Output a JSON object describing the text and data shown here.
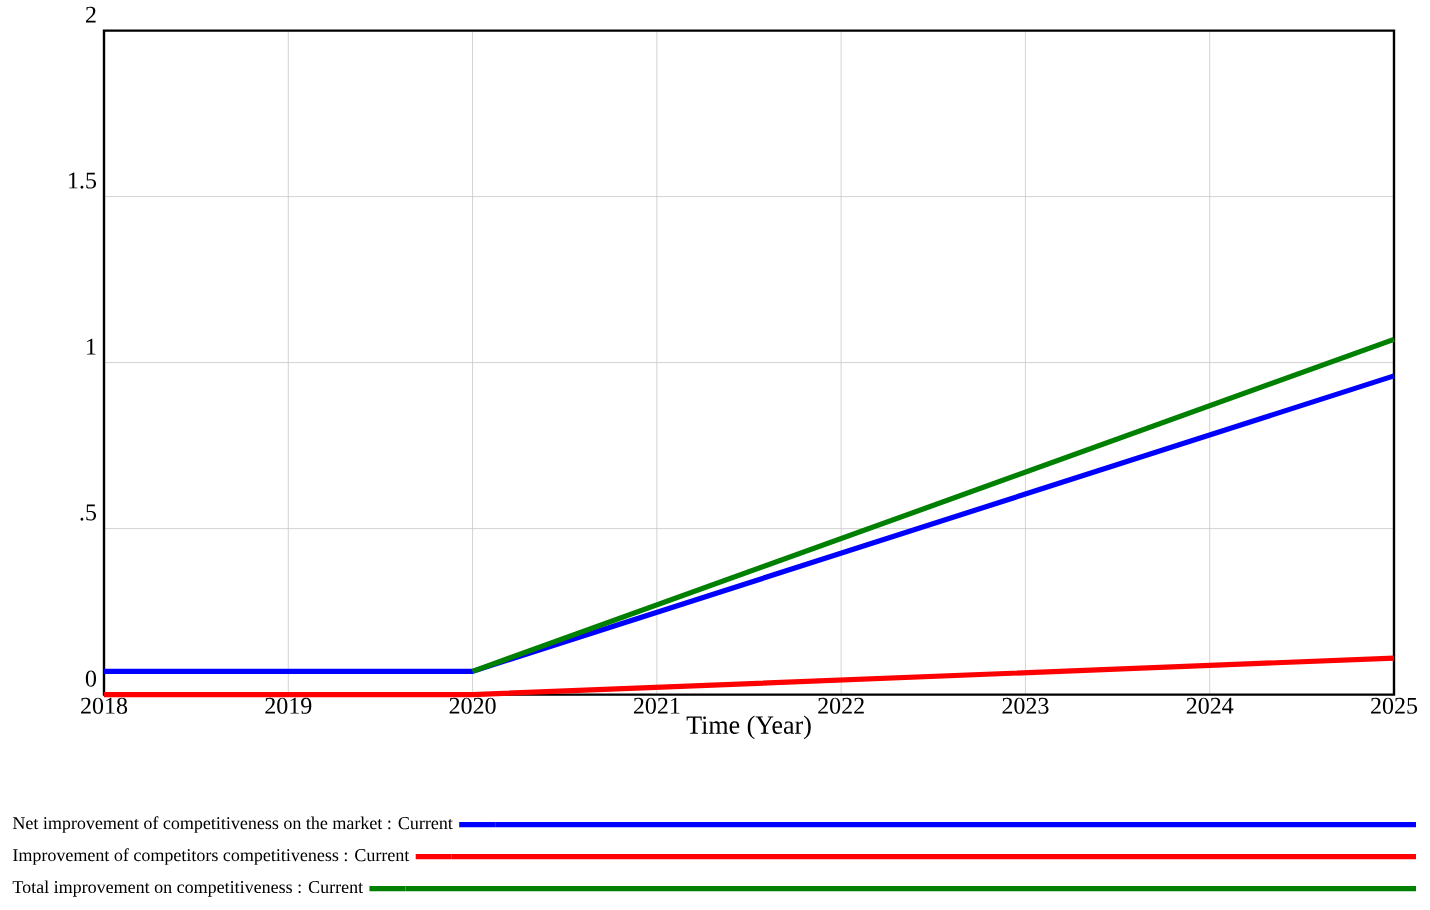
{
  "chart_data": {
    "type": "line",
    "xlabel": "Time (Year)",
    "x": [
      2018,
      2020,
      2025
    ],
    "series": [
      {
        "name": "Net improvement of competitiveness on the market : Current",
        "color": "#0000ff",
        "values": [
          0.07,
          0.07,
          0.96
        ]
      },
      {
        "name": "Improvement of competitors competitiveness : Current",
        "color": "#ff0000",
        "values": [
          0,
          0,
          0.11
        ]
      },
      {
        "name": "Total improvement on competitiveness : Current",
        "color": "#008000",
        "x": [
          2020,
          2025
        ],
        "values": [
          0.07,
          1.07
        ]
      }
    ],
    "xlim": [
      2018,
      2025
    ],
    "xticks": [
      2018,
      2019,
      2020,
      2021,
      2022,
      2023,
      2024,
      2025
    ],
    "ylim": [
      0,
      2
    ],
    "yticks": [
      {
        "value": 0,
        "label": "0"
      },
      {
        "value": 0.5,
        "label": ".5"
      },
      1,
      1.5,
      2
    ],
    "grid": true,
    "legend": "bottom",
    "marker": "none",
    "line_style": "solid"
  }
}
